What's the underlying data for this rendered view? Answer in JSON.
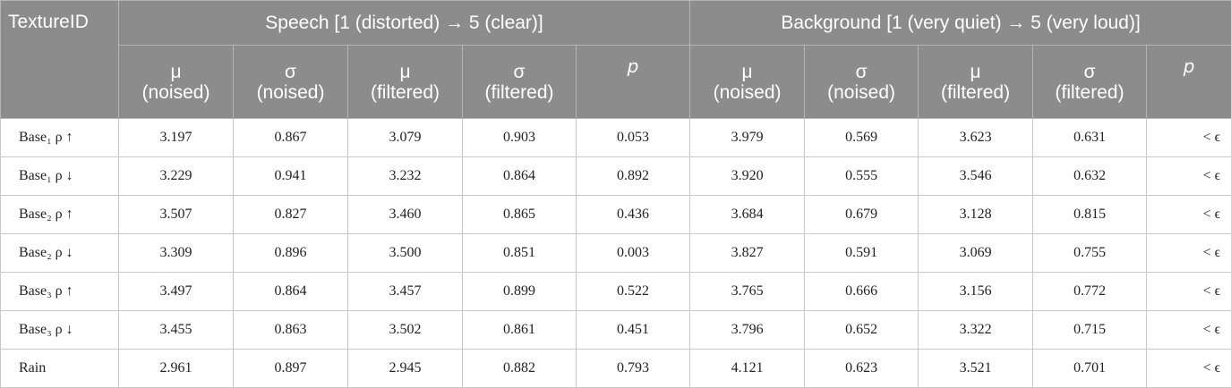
{
  "table": {
    "header": [
      "TextureID",
      "Speech [1 (distorted) →  5 (clear)]",
      "Background [1 (very quiet) →  5 (very loud)]"
    ],
    "subheader": [
      {
        "symbol": "μ",
        "label": "(noised)"
      },
      {
        "symbol": "σ",
        "label": "(noised)"
      },
      {
        "symbol": "μ",
        "label": "(filtered)"
      },
      {
        "symbol": "σ",
        "label": "(filtered)"
      },
      {
        "symbol": "p"
      },
      {
        "symbol": "μ",
        "label": "(noised)"
      },
      {
        "symbol": "σ",
        "label": "(noised)"
      },
      {
        "symbol": "μ",
        "label": "(filtered)"
      },
      {
        "symbol": "σ",
        "label": "(filtered)"
      },
      {
        "symbol": "p"
      }
    ],
    "rows": [
      [
        "Base₁ ρ ↑",
        "3.197",
        "0.867",
        "3.079",
        "0.903",
        "0.053",
        "3.979",
        "0.569",
        "3.623",
        "0.631",
        "< ϵ"
      ],
      [
        "Base₁ ρ ↓",
        "3.229",
        "0.941",
        "3.232",
        "0.864",
        "0.892",
        "3.920",
        "0.555",
        "3.546",
        "0.632",
        "< ϵ"
      ],
      [
        "Base₂ ρ ↑",
        "3.507",
        "0.827",
        "3.460",
        "0.865",
        "0.436",
        "3.684",
        "0.679",
        "3.128",
        "0.815",
        "< ϵ"
      ],
      [
        "Base₂ ρ ↓",
        "3.309",
        "0.896",
        "3.500",
        "0.851",
        "0.003",
        "3.827",
        "0.591",
        "3.069",
        "0.755",
        "< ϵ"
      ],
      [
        "Base₃ ρ ↑",
        "3.497",
        "0.864",
        "3.457",
        "0.899",
        "0.522",
        "3.765",
        "0.666",
        "3.156",
        "0.772",
        "< ϵ"
      ],
      [
        "Base₃ ρ ↓",
        "3.455",
        "0.863",
        "3.502",
        "0.861",
        "0.451",
        "3.796",
        "0.652",
        "3.322",
        "0.715",
        "< ϵ"
      ],
      [
        "Rain",
        "2.961",
        "0.897",
        "2.945",
        "0.882",
        "0.793",
        "4.121",
        "0.623",
        "3.521",
        "0.701",
        "< ϵ"
      ]
    ]
  }
}
